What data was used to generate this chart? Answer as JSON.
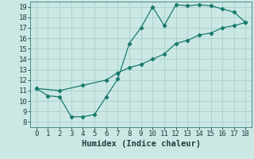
{
  "line1_x": [
    0,
    1,
    2,
    3,
    4,
    5,
    6,
    7,
    8,
    9,
    10,
    11,
    12,
    13,
    14,
    15,
    16,
    17,
    18
  ],
  "line1_y": [
    11.2,
    10.5,
    10.4,
    8.5,
    8.5,
    8.7,
    10.4,
    12.1,
    15.5,
    17.0,
    19.0,
    17.2,
    19.2,
    19.1,
    19.2,
    19.1,
    18.8,
    18.5,
    17.5
  ],
  "line2_x": [
    0,
    2,
    4,
    6,
    7,
    8,
    9,
    10,
    11,
    12,
    13,
    14,
    15,
    16,
    17,
    18
  ],
  "line2_y": [
    11.2,
    11.0,
    11.5,
    12.0,
    12.7,
    13.2,
    13.5,
    14.0,
    14.5,
    15.5,
    15.8,
    16.3,
    16.5,
    17.0,
    17.2,
    17.5
  ],
  "color": "#1a7a6e",
  "bg_color": "#cce8e4",
  "grid_color": "#aad4d0",
  "xlabel": "Humidex (Indice chaleur)",
  "xlim": [
    -0.5,
    18.5
  ],
  "ylim": [
    7.5,
    19.5
  ],
  "xticks": [
    0,
    1,
    2,
    3,
    4,
    5,
    6,
    7,
    8,
    9,
    10,
    11,
    12,
    13,
    14,
    15,
    16,
    17,
    18
  ],
  "yticks": [
    8,
    9,
    10,
    11,
    12,
    13,
    14,
    15,
    16,
    17,
    18,
    19
  ],
  "tick_fontsize": 6.5,
  "xlabel_fontsize": 7.5
}
